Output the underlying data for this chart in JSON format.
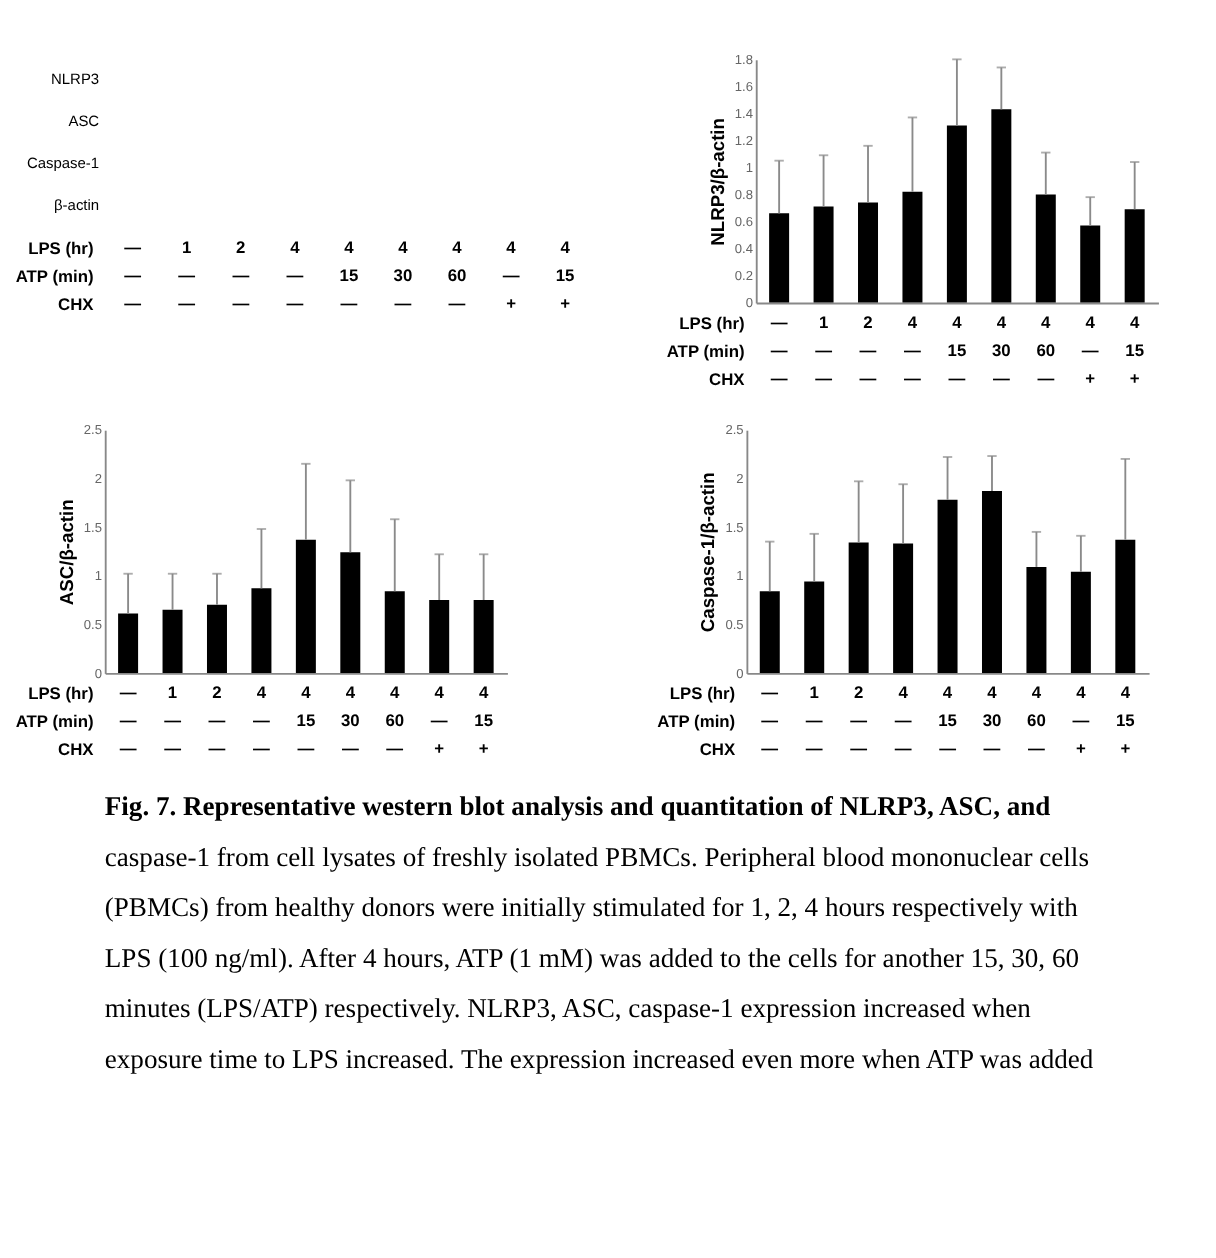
{
  "chart_data": [
    {
      "type": "other",
      "categories": [
        "—\n—\n—",
        "1\n—\n—",
        "2\n—\n—",
        "4\n—\n—",
        "4\n15\n—",
        "4\n30\n—",
        "4\n60\n—",
        "4\n—\n+",
        "4\n15\n+"
      ],
      "y_categories": [
        "NLRP3",
        "ASC",
        "Caspase-1",
        "β-actin"
      ],
      "annotations": [
        "LPS (hr)",
        "ATP (min)",
        "CHX"
      ]
    },
    {
      "type": "bar",
      "ylabel": "NLRP3/β-actin",
      "categories": [
        "—\n—\n—",
        "1\n—\n—",
        "2\n—\n—",
        "4\n—\n—",
        "4\n15\n—",
        "4\n30\n—",
        "4\n60\n—",
        "4\n—\n+",
        "4\n15\n+"
      ],
      "values": [
        0.66,
        0.71,
        0.74,
        0.82,
        1.31,
        1.43,
        0.8,
        0.57,
        0.69
      ],
      "errors": [
        [
          0.66,
          1.05
        ],
        [
          0.71,
          1.09
        ],
        [
          0.74,
          1.16
        ],
        [
          0.82,
          1.37
        ],
        [
          1.31,
          1.8
        ],
        [
          1.43,
          1.74
        ],
        [
          0.8,
          1.11
        ],
        [
          0.57,
          0.78
        ],
        [
          0.69,
          1.04
        ]
      ],
      "color": "#000000",
      "ylim": [
        0,
        1.8
      ],
      "yticks": [
        0,
        0.2,
        0.4,
        0.6,
        0.8,
        1,
        1.2,
        1.4,
        1.6,
        1.8
      ],
      "annotations": [
        "LPS (hr)",
        "ATP (min)",
        "CHX"
      ]
    },
    {
      "type": "bar",
      "ylabel": "ASC/β-actin",
      "categories": [
        "—\n—\n—",
        "1\n—\n—",
        "2\n—\n—",
        "4\n—\n—",
        "4\n15\n—",
        "4\n30\n—",
        "4\n60\n—",
        "4\n—\n+",
        "4\n15\n+"
      ],
      "values": [
        0.61,
        0.65,
        0.7,
        0.87,
        1.37,
        1.24,
        0.84,
        0.75,
        0.75
      ],
      "errors": [
        [
          0.61,
          1.02
        ],
        [
          0.65,
          1.02
        ],
        [
          0.7,
          1.02
        ],
        [
          0.87,
          1.48
        ],
        [
          1.37,
          2.15
        ],
        [
          1.24,
          1.98
        ],
        [
          0.84,
          1.58
        ],
        [
          0.75,
          1.22
        ],
        [
          0.75,
          1.22
        ]
      ],
      "color": "#000000",
      "ylim": [
        0,
        2.5
      ],
      "yticks": [
        0,
        0.5,
        1,
        1.5,
        2,
        2.5
      ],
      "annotations": [
        "LPS (hr)",
        "ATP (min)",
        "CHX"
      ]
    },
    {
      "type": "bar",
      "ylabel": "Caspase-1/β-actin",
      "categories": [
        "—\n—\n—",
        "1\n—\n—",
        "2\n—\n—",
        "4\n—\n—",
        "4\n15\n—",
        "4\n30\n—",
        "4\n60\n—",
        "4\n—\n+",
        "4\n15\n+"
      ],
      "values": [
        0.84,
        0.94,
        1.34,
        1.33,
        1.78,
        1.87,
        1.09,
        1.04,
        1.37
      ],
      "errors": [
        [
          0.84,
          1.35
        ],
        [
          0.94,
          1.43
        ],
        [
          1.34,
          1.97
        ],
        [
          1.33,
          1.94
        ],
        [
          1.78,
          2.22
        ],
        [
          1.87,
          2.23
        ],
        [
          1.09,
          1.45
        ],
        [
          1.04,
          1.41
        ],
        [
          1.37,
          2.2
        ]
      ],
      "color": "#000000",
      "ylim": [
        0,
        2.5
      ],
      "yticks": [
        0,
        0.5,
        1,
        1.5,
        2,
        2.5
      ],
      "annotations": [
        "LPS (hr)",
        "ATP (min)",
        "CHX"
      ]
    },
    {
      "type": "other",
      "annotations": [
        "Fig. 7. Representative western blot analysis and quantitation of NLRP3, ASC, and",
        "caspase-1 from cell lysates of freshly isolated PBMCs. Peripheral blood mononuclear cells",
        "(PBMCs) from healthy donors were initially stimulated for 1, 2, 4 hours respectively with",
        "LPS (100 ng/ml). After 4 hours, ATP (1 mM) was added to the cells for another 15, 30, 60",
        "minutes (LPS/ATP) respectively. NLRP3, ASC, caspase-1 expression increased when",
        "exposure time to LPS increased. The expression increased even more when ATP was added"
      ]
    }
  ]
}
